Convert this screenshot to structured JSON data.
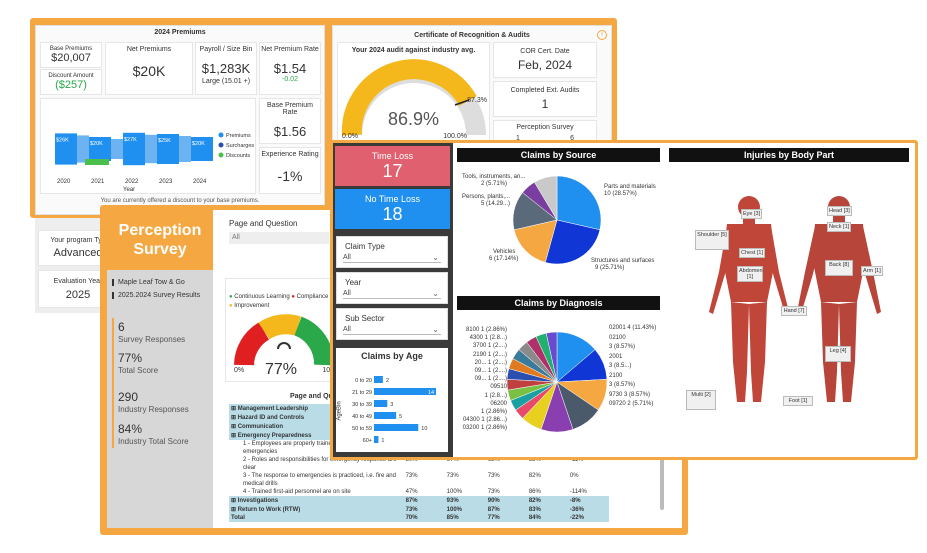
{
  "premiums": {
    "title": "2024 Premiums",
    "base_label": "Base Premiums",
    "base_value": "$20,007",
    "discount_label": "Discount Amount",
    "discount_value": "($257)",
    "net_label": "Net Premiums",
    "net_value": "$20K",
    "payroll_label": "Payroll / Size Bin",
    "payroll_value": "$1,283K",
    "payroll_size": "Large (15.01 +)",
    "npr_label": "Net Premium Rate",
    "npr_value": "$1.54",
    "npr_delta": "-0.02",
    "bpr_label": "Base Premium Rate",
    "bpr_value": "$1.56",
    "exp_label": "Experience Rating",
    "exp_value": "-1%",
    "legend": [
      "Premiums",
      "Surcharges",
      "Discounts"
    ],
    "years": [
      "2020",
      "2021",
      "2022",
      "2023",
      "2024"
    ],
    "xlabel": "Year",
    "bar_labels": [
      "$26K",
      "$20K",
      "$27K",
      "$25K",
      "$20K"
    ],
    "note": "You are currently offered a discount to your base premiums.",
    "program_label": "Your program Typ",
    "program_value": "Advanced",
    "eval_label": "Evaluation Year",
    "eval_value": "2025"
  },
  "cert": {
    "title": "Certificate of Recognition & Audits",
    "audit_title": "Your 2024 audit against industry avg.",
    "gauge_value": "86.9%",
    "gauge_min": "0.0%",
    "gauge_max": "100.0%",
    "gauge_target": "87.3%",
    "cor_label": "COR Cert. Date",
    "cor_value": "Feb, 2024",
    "ext_label": "Completed Ext. Audits",
    "ext_value": "1",
    "perc_label": "Perception Survey",
    "perc_a": "1",
    "perc_b": "6"
  },
  "perception": {
    "title_line1": "Perception",
    "title_line2": "Survey",
    "page_q_label": "Page and Question",
    "page_q_value": "All",
    "company": "Maple Leaf Tow & Go",
    "results": "2025.2024 Survey Results",
    "stats": [
      {
        "value": "6",
        "label": "Survey Responses"
      },
      {
        "value": "77%",
        "label": "Total Score"
      },
      {
        "value": "290",
        "label": "Industry Responses"
      },
      {
        "value": "84%",
        "label": "Industry Total Score"
      }
    ],
    "legend": [
      "Continuous Learning",
      "Compliance",
      "Improvement"
    ],
    "gauge_value": "77%",
    "gauge_min": "0%",
    "gauge_max": "100",
    "table_title": "Page and Ques",
    "rows": [
      {
        "label": "Management Leadership",
        "type": "head",
        "vals": [
          "",
          "",
          "",
          "",
          ""
        ]
      },
      {
        "label": "Hazard ID and Controls",
        "type": "head",
        "vals": [
          "",
          "",
          "",
          "",
          ""
        ]
      },
      {
        "label": "Communication",
        "type": "head",
        "vals": [
          "",
          "",
          "",
          "",
          ""
        ]
      },
      {
        "label": "Emergency Preparedness",
        "type": "head",
        "vals": [
          "",
          "",
          "",
          "",
          ""
        ]
      },
      {
        "label": "1 - Employees are properly traine",
        "type": "sub",
        "vals": [
          "",
          "",
          "",
          "",
          ""
        ]
      },
      {
        "label": "emergencies",
        "type": "cont",
        "vals": [
          "",
          "",
          "",
          "",
          ""
        ]
      },
      {
        "label": "2 - Roles and responsibilities for emergency response are",
        "type": "sub",
        "vals": [
          "80%",
          "67%",
          "63%",
          "83%",
          "-11%"
        ]
      },
      {
        "label": "clear",
        "type": "cont",
        "vals": [
          "",
          "",
          "",
          "",
          ""
        ]
      },
      {
        "label": "3 - The response to emergencies is practiced, i.e. fire and",
        "type": "sub",
        "vals": [
          "73%",
          "73%",
          "73%",
          "82%",
          "0%"
        ]
      },
      {
        "label": "medical drills",
        "type": "cont",
        "vals": [
          "",
          "",
          "",
          "",
          ""
        ]
      },
      {
        "label": "4 - Trained first-aid personnel are on site",
        "type": "sub",
        "vals": [
          "47%",
          "100%",
          "73%",
          "86%",
          "-114%"
        ]
      },
      {
        "label": "Investigations",
        "type": "head",
        "vals": [
          "87%",
          "93%",
          "90%",
          "82%",
          "-8%"
        ]
      },
      {
        "label": "Return to Work (RTW)",
        "type": "head",
        "vals": [
          "73%",
          "100%",
          "87%",
          "83%",
          "-36%"
        ]
      },
      {
        "label": "Total",
        "type": "total",
        "vals": [
          "70%",
          "85%",
          "77%",
          "84%",
          "-22%"
        ]
      }
    ]
  },
  "claims": {
    "time_loss_label": "Time Loss",
    "time_loss_value": "17",
    "no_time_loss_label": "No Time Loss",
    "no_time_loss_value": "18",
    "claim_type_label": "Claim Type",
    "claim_type_value": "All",
    "year_label": "Year",
    "year_value": "All",
    "sub_sector_label": "Sub Sector",
    "sub_sector_value": "All",
    "age_title": "Claims by Age",
    "age_axis": "AgeBin",
    "source_title": "Claims by Source",
    "source_labels": [
      "Tools, instruments, an...",
      "2 (5.71%)",
      "Persons, plants,...",
      "5 (14.29...)",
      "Parts and materials",
      "10 (28.57%)",
      "Vehicles",
      "6 (17.14%)",
      "Structures and surfaces",
      "9 (25.71%)"
    ],
    "diag_title": "Claims by Diagnosis",
    "diag_labels_left": [
      "8100 1 (2.86%)",
      "4300 1 (2.8...)",
      "3700 1 (2....)",
      "2190 1 (2....)",
      "20... 1 (2....)",
      "09... 1 (2....)",
      "09... 1 (2....)",
      "09510",
      "1 (2.8...)",
      "06200",
      "1 (2.86%)",
      "04300 1 (2.86...)",
      "03200 1 (2.86%)"
    ],
    "diag_labels_right": [
      "02001 4 (11.43%)",
      "02100",
      "3 (8.57%)",
      "2001",
      "3 (8.5...)",
      "2100",
      "3 (8.57%)",
      "9730 3 (8.57%)",
      "09720 2 (5.71%)"
    ],
    "body_title": "Injuries by Body Part",
    "body_labels": [
      "Eye [3]",
      "Head [3]",
      "Neck [1]",
      "Shoulder [5]",
      "Chest [1]",
      "Abdomen [1]",
      "Back [8]",
      "Arm [1]",
      "Hand [7]",
      "Leg [4]",
      "Multi [2]",
      "Foot [1]"
    ]
  },
  "chart_data": [
    {
      "type": "bar",
      "title": "Claims by Age",
      "ylabel": "AgeBin",
      "categories": [
        "0 to 20",
        "21 to 29",
        "30 to 39",
        "40 to 49",
        "50 to 59",
        "60+"
      ],
      "values": [
        2,
        14,
        3,
        5,
        10,
        1
      ]
    },
    {
      "type": "pie",
      "title": "Claims by Source",
      "categories": [
        "Parts and materials",
        "Structures and surfaces",
        "Vehicles",
        "Persons, plants,...",
        "Tools, instruments, an...",
        "Other"
      ],
      "values": [
        10,
        9,
        6,
        5,
        2,
        3
      ],
      "colors": [
        "#1f8ff0",
        "#1036d6",
        "#f5a742",
        "#5a6a7a",
        "#7a3ea0",
        "#c9c9c9"
      ]
    },
    {
      "type": "pie",
      "title": "Claims by Diagnosis",
      "categories": [
        "02001",
        "02100",
        "2001",
        "2100",
        "9730",
        "09720",
        "03200",
        "04300",
        "06200",
        "09510",
        "09...",
        "09...",
        "20...",
        "2190",
        "3700",
        "4300",
        "8100"
      ],
      "values": [
        4,
        3,
        3,
        3,
        3,
        2,
        1,
        1,
        1,
        1,
        1,
        1,
        1,
        1,
        1,
        1,
        1
      ],
      "colors": [
        "#1f8ff0",
        "#1036d6",
        "#f5a742",
        "#4a5a6a",
        "#8a3fb0",
        "#e8d020",
        "#e84a6a",
        "#1aa0a0",
        "#7ac043",
        "#c04040",
        "#2a4fb0",
        "#e07a20",
        "#3a7a9a",
        "#8a8a8a",
        "#b0306a",
        "#20b070",
        "#6a4ad0"
      ]
    },
    {
      "type": "bar",
      "title": "2024 Premiums",
      "xlabel": "Year",
      "categories": [
        "2020",
        "2021",
        "2022",
        "2023",
        "2024"
      ],
      "series": [
        {
          "name": "Premiums",
          "values": [
            26,
            20,
            27,
            25,
            20
          ]
        }
      ],
      "colors": [
        "#1f8ff0",
        "#2a4fb0",
        "#4bbf4b"
      ]
    }
  ],
  "colors": {
    "orange": "#f5a742",
    "timeloss": "#e06070",
    "notimeloss": "#1f8ff0",
    "blue": "#1f8ff0"
  }
}
